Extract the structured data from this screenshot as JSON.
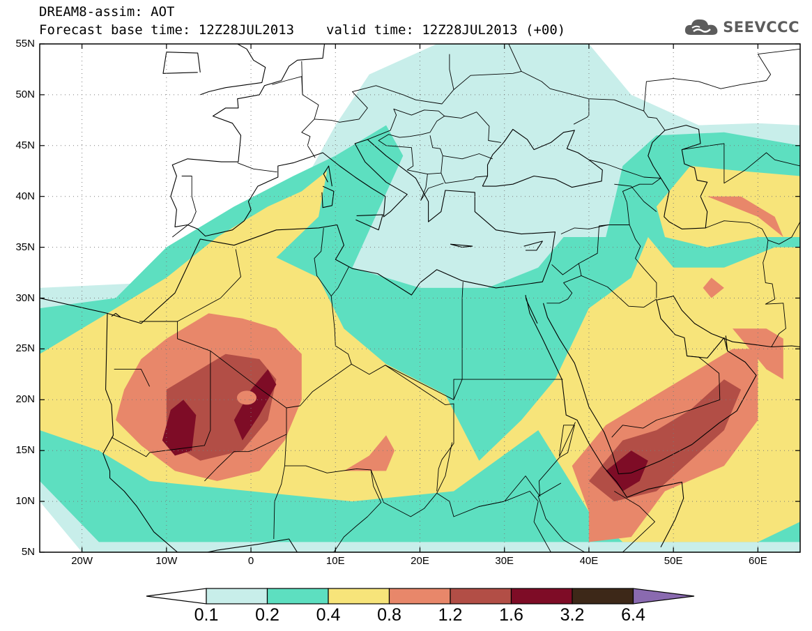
{
  "header": {
    "title": "DREAM8-assim: AOT",
    "base_time": "Forecast base time: 12Z28JUL2013",
    "valid_time": "valid time: 12Z28JUL2013 (+00)"
  },
  "brand": {
    "name": "SEEVCCC",
    "icon": "cloud-icon"
  },
  "map": {
    "projection": "lat-lon",
    "lon_range": [
      -25,
      65
    ],
    "lat_range": [
      5,
      55
    ],
    "lat_ticks": [
      {
        "value": 55,
        "label": "55N"
      },
      {
        "value": 50,
        "label": "50N"
      },
      {
        "value": 45,
        "label": "45N"
      },
      {
        "value": 40,
        "label": "40N"
      },
      {
        "value": 35,
        "label": "35N"
      },
      {
        "value": 30,
        "label": "30N"
      },
      {
        "value": 25,
        "label": "25N"
      },
      {
        "value": 20,
        "label": "20N"
      },
      {
        "value": 15,
        "label": "15N"
      },
      {
        "value": 10,
        "label": "10N"
      },
      {
        "value": 5,
        "label": "5N"
      }
    ],
    "lon_ticks": [
      {
        "value": -20,
        "label": "20W"
      },
      {
        "value": -10,
        "label": "10W"
      },
      {
        "value": 0,
        "label": "0"
      },
      {
        "value": 10,
        "label": "10E"
      },
      {
        "value": 20,
        "label": "20E"
      },
      {
        "value": 30,
        "label": "30E"
      },
      {
        "value": 40,
        "label": "40E"
      },
      {
        "value": 50,
        "label": "50E"
      },
      {
        "value": 60,
        "label": "60E"
      }
    ],
    "grid": "dotted"
  },
  "legend": {
    "levels": [
      "0.1",
      "0.2",
      "0.4",
      "0.8",
      "1.2",
      "1.6",
      "3.2",
      "6.4"
    ],
    "colors": [
      "#c8eeea",
      "#5ddfc0",
      "#f7e47a",
      "#e8876a",
      "#b24e46",
      "#7e0c26",
      "#3d2818",
      "#8a6ab0"
    ],
    "under_color": "#ffffff"
  }
}
